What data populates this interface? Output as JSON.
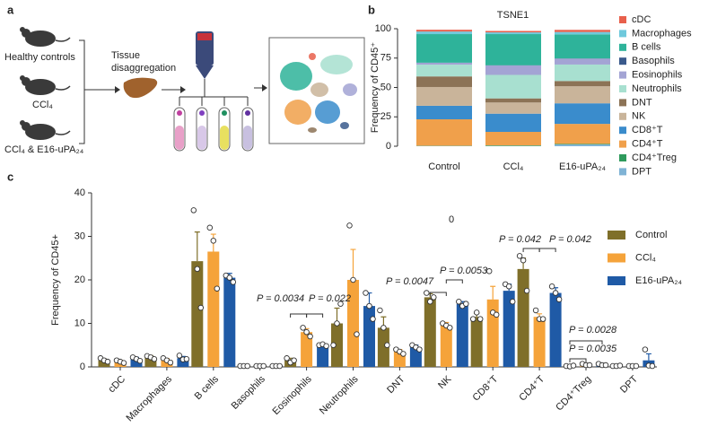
{
  "panel_labels": [
    "a",
    "b",
    "c"
  ],
  "diagram": {
    "groups": [
      "Healthy controls",
      "CCl₄",
      "CCl₄ & E16-uPA₂₄"
    ],
    "step": [
      "Tissue",
      "disaggregation"
    ]
  },
  "chart_data": [
    {
      "type": "stacked_bar",
      "title": "TSNE1",
      "y_label": "Frequency of CD45⁺",
      "categories": [
        "Control",
        "CCl₄",
        "E16-uPA₂₄"
      ],
      "ylim": [
        0,
        100
      ],
      "yticks": [
        0,
        25,
        50,
        75,
        100
      ],
      "series": [
        {
          "name": "cDC",
          "color": "#e8604c",
          "values": [
            1.5,
            1.2,
            1.8
          ]
        },
        {
          "name": "Macrophages",
          "color": "#6fc9dc",
          "values": [
            2.2,
            1.5,
            2
          ]
        },
        {
          "name": "B cells",
          "color": "#2eb39a",
          "values": [
            24.3,
            26.5,
            20.5
          ]
        },
        {
          "name": "Basophils",
          "color": "#3a5a8c",
          "values": [
            0.2,
            0.2,
            0.2
          ]
        },
        {
          "name": "Eosinophils",
          "color": "#a3a4d4",
          "values": [
            1.5,
            8,
            5
          ]
        },
        {
          "name": "Neutrophils",
          "color": "#a8e0d0",
          "values": [
            10,
            20,
            14
          ]
        },
        {
          "name": "DNT",
          "color": "#8c7356",
          "values": [
            9,
            3.5,
            4.5
          ]
        },
        {
          "name": "NK",
          "color": "#c9b49a",
          "values": [
            16,
            9.5,
            14.5
          ]
        },
        {
          "name": "CD8⁺T",
          "color": "#3a8ccc",
          "values": [
            11.5,
            15.5,
            17.5
          ]
        },
        {
          "name": "CD4⁺T",
          "color": "#f0a04b",
          "values": [
            22.5,
            11.5,
            17
          ]
        },
        {
          "name": "CD4⁺Treg",
          "color": "#2e9a5c",
          "values": [
            0.2,
            0.5,
            0.5
          ]
        },
        {
          "name": "DPT",
          "color": "#7fb3d5",
          "values": [
            0.2,
            0.2,
            1.5
          ]
        }
      ]
    },
    {
      "type": "bar",
      "y_label": "Frequency of CD45+",
      "ylim": [
        0,
        40
      ],
      "yticks": [
        0,
        10,
        20,
        30,
        40
      ],
      "categories": [
        "cDC",
        "Macrophages",
        "B cells",
        "Basophils",
        "Eosinophils",
        "Neutrophils",
        "DNT",
        "NK",
        "CD8⁺T",
        "CD4⁺T",
        "CD4⁺Treg",
        "DPT"
      ],
      "series": [
        {
          "name": "Control",
          "color": "#7f6f2a",
          "values": [
            1.5,
            2.2,
            24.3,
            0.2,
            1.5,
            10,
            9,
            16,
            11.5,
            22.5,
            0.2,
            0.2
          ],
          "errors": [
            0.3,
            0.4,
            6.7,
            0.05,
            0.5,
            3.5,
            2.5,
            0.8,
            0.8,
            2.5,
            0.1,
            0.1
          ],
          "points": [
            [
              2,
              1.5,
              1.2
            ],
            [
              2.5,
              2.2,
              1.8
            ],
            [
              36,
              22.5,
              13.6
            ],
            [
              0.2,
              0.2,
              0.2
            ],
            [
              2,
              1,
              1.5
            ],
            [
              5,
              10,
              14.5
            ],
            [
              13,
              9,
              5
            ],
            [
              17,
              15,
              16
            ],
            [
              11,
              12.5,
              11
            ],
            [
              25.5,
              24.5,
              17.5
            ],
            [
              0.2,
              0.1,
              0.3
            ],
            [
              0.2,
              0.2,
              0.3
            ]
          ]
        },
        {
          "name": "CCl₄",
          "color": "#f5a33a",
          "values": [
            1.2,
            1.5,
            26.5,
            0.2,
            8,
            20,
            3.5,
            9.5,
            15.5,
            11.5,
            0.5,
            0.2
          ],
          "errors": [
            0.3,
            0.4,
            4,
            0.05,
            0.8,
            7,
            0.5,
            0.7,
            3,
            0.7,
            0.2,
            0.1
          ],
          "points": [
            [
              1.5,
              1.2,
              0.9
            ],
            [
              2,
              1.5,
              1
            ],
            [
              32,
              29,
              18
            ],
            [
              0.2,
              0.2,
              0.2
            ],
            [
              9,
              8,
              7
            ],
            [
              32.5,
              20,
              7.5
            ],
            [
              4,
              3.5,
              3
            ],
            [
              10,
              9.5,
              9
            ],
            [
              22,
              12.5,
              12
            ],
            [
              13,
              11,
              11
            ],
            [
              0.7,
              0.4,
              0.4
            ],
            [
              0.2,
              0.2,
              0.2
            ]
          ]
        },
        {
          "name": "E16-uPA₂₄",
          "color": "#1f5aa6",
          "values": [
            1.8,
            2,
            20.5,
            0.2,
            5,
            14,
            4.5,
            14.5,
            17.5,
            17,
            0.5,
            1.5
          ],
          "errors": [
            0.4,
            0.4,
            1,
            0.05,
            0.2,
            3,
            0.5,
            0.5,
            1.5,
            1.2,
            0.2,
            1.5
          ],
          "points": [
            [
              2.2,
              1.8,
              1.4
            ],
            [
              2.6,
              1.7,
              1.8
            ],
            [
              21,
              20.5,
              19.5
            ],
            [
              0.2,
              0.2,
              0.2
            ],
            [
              5,
              5.2,
              4.8
            ],
            [
              17,
              14,
              11
            ],
            [
              5,
              4.5,
              4
            ],
            [
              15,
              14,
              14.5
            ],
            [
              19,
              18.5,
              15
            ],
            [
              18.5,
              17,
              15.5
            ],
            [
              0.7,
              0.4,
              0.4
            ],
            [
              4,
              0.3,
              0.2
            ]
          ]
        }
      ],
      "annotations": [
        "P = 0.0034",
        "P = 0.022",
        "P = 0.0047",
        "P = 0.0053",
        "P = 0.042",
        "P = 0.042",
        "P = 0.0028",
        "P = 0.0035"
      ],
      "note": "0"
    }
  ]
}
